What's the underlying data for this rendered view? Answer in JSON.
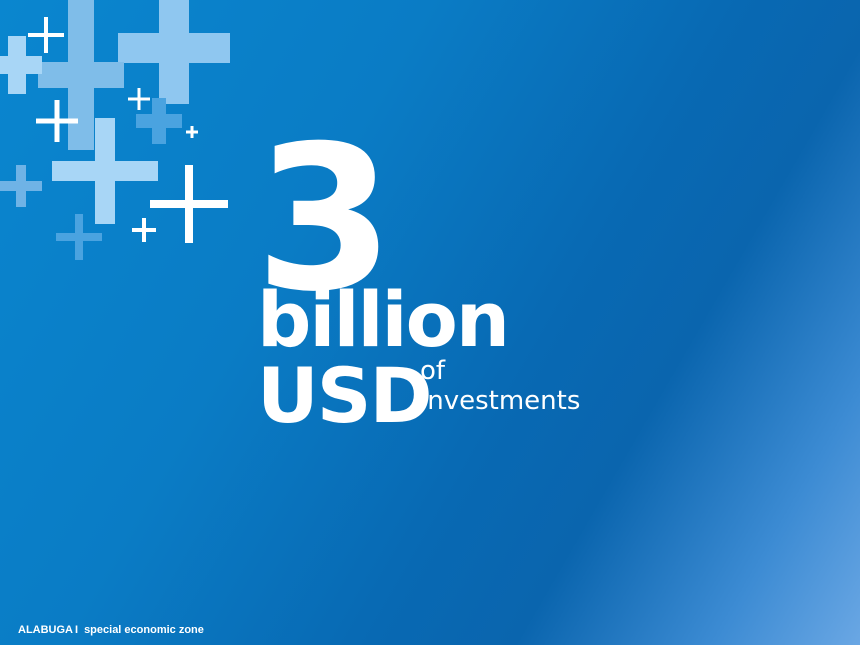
{
  "headline": {
    "number": "3",
    "unit": "billion",
    "currency": "USD",
    "qualifier_line1": "of",
    "qualifier_line2": "investments"
  },
  "footer": {
    "brand": "ALABUGA",
    "separator": "I",
    "tagline": "special economic zone"
  },
  "decoration": {
    "icon": "plus-icon",
    "colors": {
      "light": "#8fc7f0",
      "pale": "#a8d6f6",
      "white": "#ffffff",
      "mid": "#4aa3e0"
    }
  }
}
